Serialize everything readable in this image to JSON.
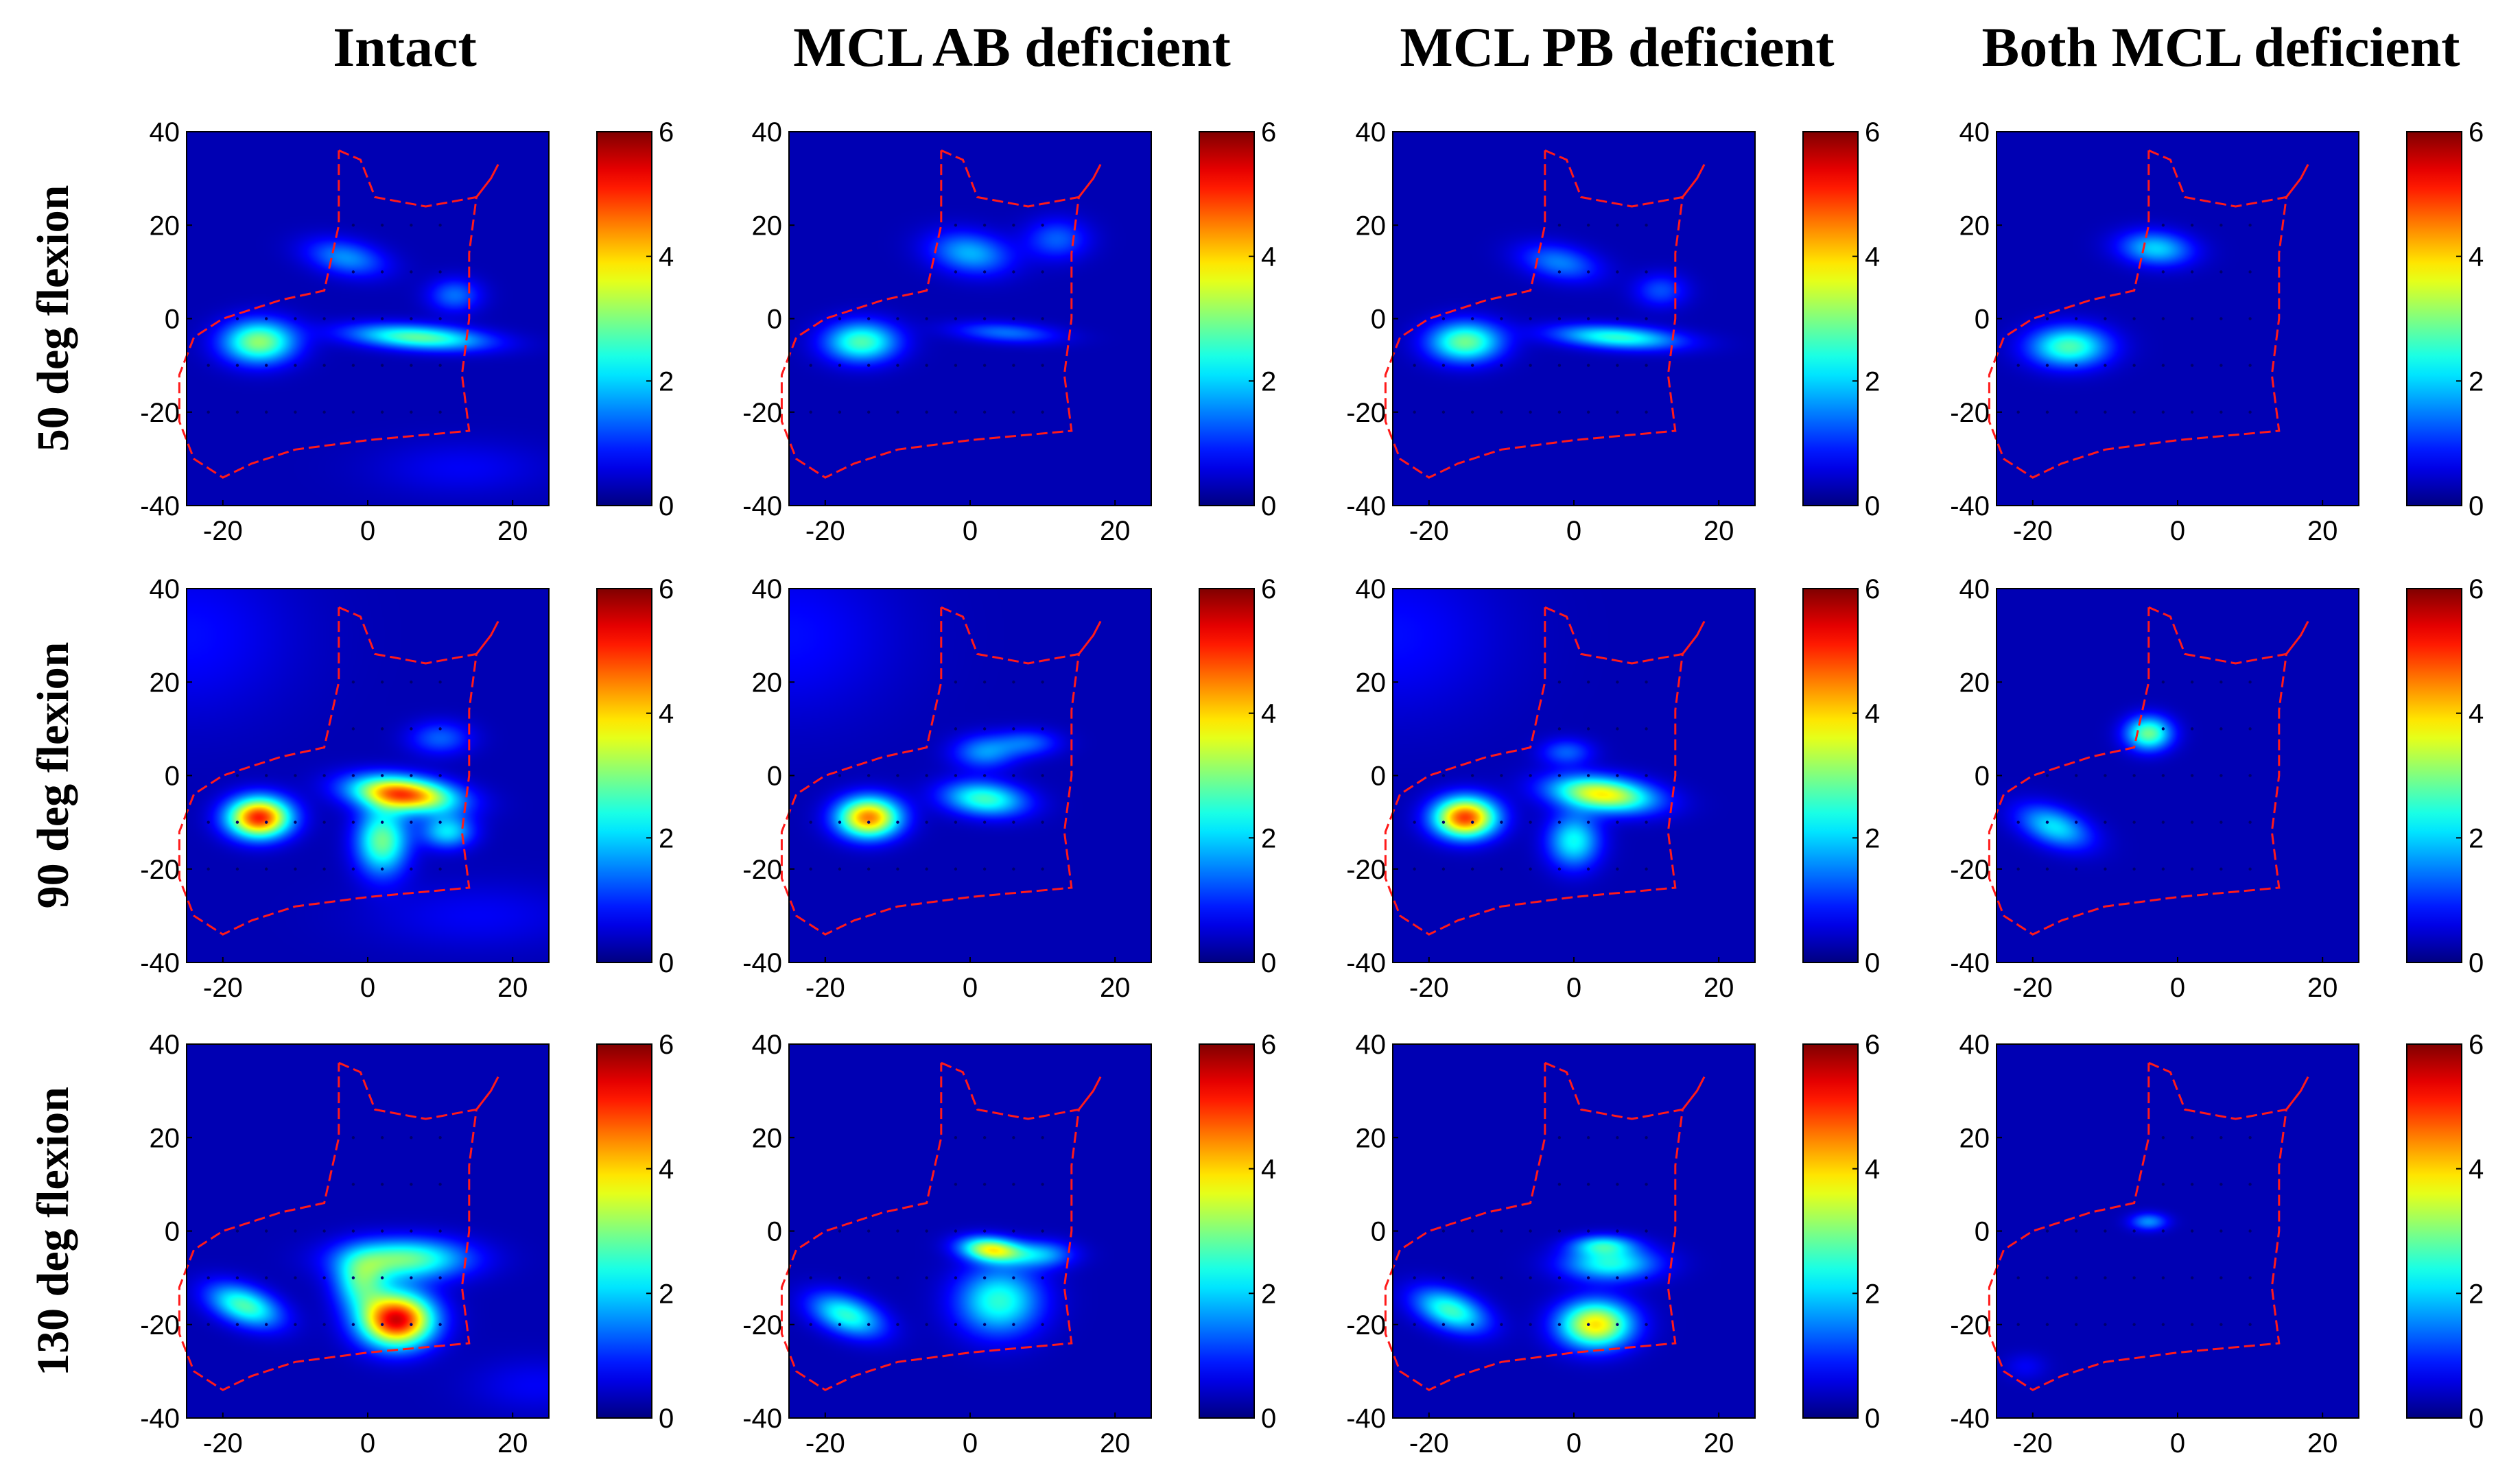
{
  "colors": {
    "background": "#000080",
    "outline": "#ff1a1a",
    "marker": "#00006e",
    "colormap": [
      "#00008f",
      "#0000ff",
      "#00ffff",
      "#ffff00",
      "#ff0000",
      "#800000"
    ]
  },
  "chart_data": {
    "type": "heatmap",
    "title": "",
    "column_titles": [
      "Intact",
      "MCL AB deficient",
      "MCL PB deficient",
      "Both MCL deficient"
    ],
    "row_titles": [
      "50 deg flexion",
      "90 deg flexion",
      "130 deg flexion"
    ],
    "x_range": [
      -25,
      25
    ],
    "y_range": [
      -40,
      40
    ],
    "x_ticks": [
      "-20",
      "0",
      "20"
    ],
    "y_ticks": [
      "40",
      "20",
      "0",
      "-20",
      "-40"
    ],
    "colorbar": {
      "range": [
        0,
        6
      ],
      "ticks": [
        "6",
        "4",
        "2",
        "0"
      ]
    },
    "outline": [
      [
        -4,
        36
      ],
      [
        -1,
        34
      ],
      [
        1,
        26
      ],
      [
        8,
        24
      ],
      [
        15,
        26
      ],
      [
        17,
        30
      ],
      [
        18,
        33
      ],
      [
        17,
        30
      ],
      [
        15,
        26
      ],
      [
        14,
        14
      ],
      [
        14,
        0
      ],
      [
        13,
        -12
      ],
      [
        14,
        -24
      ],
      [
        0,
        -26
      ],
      [
        -10,
        -28
      ],
      [
        -16,
        -31
      ],
      [
        -20,
        -34
      ],
      [
        -24,
        -30
      ],
      [
        -26,
        -22
      ],
      [
        -26,
        -12
      ],
      [
        -24,
        -4
      ],
      [
        -20,
        0
      ],
      [
        -12,
        4
      ],
      [
        -6,
        6
      ],
      [
        -4,
        20
      ],
      [
        -4,
        36
      ]
    ],
    "markers": [
      [
        -22,
        -20
      ],
      [
        -18,
        -20
      ],
      [
        -14,
        -20
      ],
      [
        -10,
        -20
      ],
      [
        -6,
        -20
      ],
      [
        -2,
        -20
      ],
      [
        2,
        -20
      ],
      [
        6,
        -20
      ],
      [
        10,
        -20
      ],
      [
        -22,
        -10
      ],
      [
        -18,
        -10
      ],
      [
        -14,
        -10
      ],
      [
        -10,
        -10
      ],
      [
        -6,
        -10
      ],
      [
        -2,
        -10
      ],
      [
        2,
        -10
      ],
      [
        6,
        -10
      ],
      [
        10,
        -10
      ],
      [
        -18,
        0
      ],
      [
        -14,
        0
      ],
      [
        -10,
        0
      ],
      [
        -6,
        0
      ],
      [
        -2,
        0
      ],
      [
        2,
        0
      ],
      [
        6,
        0
      ],
      [
        10,
        0
      ],
      [
        -2,
        10
      ],
      [
        2,
        10
      ],
      [
        6,
        10
      ],
      [
        10,
        10
      ],
      [
        -2,
        20
      ],
      [
        2,
        20
      ],
      [
        6,
        20
      ],
      [
        10,
        20
      ]
    ],
    "panels": [
      {
        "row": 0,
        "col": 0,
        "blobs": [
          {
            "x": -15,
            "y": -5,
            "sx": 3.5,
            "sy": 3.2,
            "v": 2.8,
            "r": 0
          },
          {
            "x": 7,
            "y": -4,
            "sx": 6.5,
            "sy": 1.8,
            "v": 2.5,
            "r": -0.1
          },
          {
            "x": -3,
            "y": 13,
            "sx": 4,
            "sy": 2.5,
            "v": 1.3,
            "r": -0.4
          },
          {
            "x": 12,
            "y": 5,
            "sx": 2.5,
            "sy": 2.5,
            "v": 1.1,
            "r": 0
          },
          {
            "x": 13,
            "y": -32,
            "sx": 8,
            "sy": 4,
            "v": 0.4,
            "r": 0
          }
        ]
      },
      {
        "row": 0,
        "col": 1,
        "blobs": [
          {
            "x": -15,
            "y": -5,
            "sx": 3.5,
            "sy": 3,
            "v": 2.4,
            "r": 0
          },
          {
            "x": 5,
            "y": -3,
            "sx": 5,
            "sy": 1.5,
            "v": 1.1,
            "r": -0.1
          },
          {
            "x": 0,
            "y": 14,
            "sx": 4,
            "sy": 3,
            "v": 1.5,
            "r": -0.4
          },
          {
            "x": 12,
            "y": 17,
            "sx": 3,
            "sy": 3,
            "v": 1,
            "r": 0
          }
        ]
      },
      {
        "row": 0,
        "col": 2,
        "blobs": [
          {
            "x": -15,
            "y": -5,
            "sx": 3.5,
            "sy": 3,
            "v": 2.6,
            "r": 0
          },
          {
            "x": 6,
            "y": -4,
            "sx": 6,
            "sy": 1.7,
            "v": 2.2,
            "r": -0.1
          },
          {
            "x": -2,
            "y": 12,
            "sx": 4,
            "sy": 2.5,
            "v": 1.2,
            "r": -0.4
          },
          {
            "x": 12,
            "y": 6,
            "sx": 2.5,
            "sy": 2.5,
            "v": 0.9,
            "r": 0
          }
        ]
      },
      {
        "row": 0,
        "col": 3,
        "blobs": [
          {
            "x": -15,
            "y": -6,
            "sx": 3.8,
            "sy": 3,
            "v": 2.4,
            "r": 0
          },
          {
            "x": -3,
            "y": 15,
            "sx": 3.5,
            "sy": 2.5,
            "v": 1.7,
            "r": -0.2
          }
        ]
      },
      {
        "row": 1,
        "col": 0,
        "blobs": [
          {
            "x": -15,
            "y": -9,
            "sx": 3,
            "sy": 3,
            "v": 4.8,
            "r": 0
          },
          {
            "x": 5,
            "y": -4,
            "sx": 5,
            "sy": 2.5,
            "v": 4.5,
            "r": -0.2
          },
          {
            "x": 2,
            "y": -14,
            "sx": 2.5,
            "sy": 5,
            "v": 2.6,
            "r": 0
          },
          {
            "x": 11,
            "y": -12,
            "sx": 2.5,
            "sy": 2.5,
            "v": 1.8,
            "r": 0
          },
          {
            "x": 10,
            "y": 8,
            "sx": 3,
            "sy": 2.5,
            "v": 1,
            "r": 0
          },
          {
            "x": -25,
            "y": 30,
            "sx": 10,
            "sy": 12,
            "v": 0.5,
            "r": 0
          },
          {
            "x": 15,
            "y": -30,
            "sx": 10,
            "sy": 5,
            "v": 0.4,
            "r": 0
          }
        ]
      },
      {
        "row": 1,
        "col": 1,
        "blobs": [
          {
            "x": -14,
            "y": -9,
            "sx": 3,
            "sy": 3,
            "v": 4.2,
            "r": 0
          },
          {
            "x": 2,
            "y": -5,
            "sx": 4,
            "sy": 2.5,
            "v": 2.3,
            "r": -0.2
          },
          {
            "x": 2,
            "y": 5,
            "sx": 3,
            "sy": 2.5,
            "v": 1.3,
            "r": 0
          },
          {
            "x": 8,
            "y": 7,
            "sx": 3,
            "sy": 2,
            "v": 1,
            "r": 0
          },
          {
            "x": -25,
            "y": 30,
            "sx": 10,
            "sy": 12,
            "v": 0.5,
            "r": 0
          }
        ]
      },
      {
        "row": 1,
        "col": 2,
        "blobs": [
          {
            "x": -15,
            "y": -9,
            "sx": 3,
            "sy": 3,
            "v": 4.6,
            "r": 0
          },
          {
            "x": 4,
            "y": -4,
            "sx": 5,
            "sy": 2.5,
            "v": 3.5,
            "r": -0.2
          },
          {
            "x": 0,
            "y": -14,
            "sx": 2.5,
            "sy": 4,
            "v": 2,
            "r": 0
          },
          {
            "x": -1,
            "y": 5,
            "sx": 2.5,
            "sy": 2,
            "v": 1,
            "r": 0
          },
          {
            "x": -25,
            "y": 30,
            "sx": 10,
            "sy": 12,
            "v": 0.5,
            "r": 0
          }
        ]
      },
      {
        "row": 1,
        "col": 3,
        "blobs": [
          {
            "x": -4,
            "y": 9,
            "sx": 2.2,
            "sy": 2.5,
            "v": 2.6,
            "r": 0
          },
          {
            "x": -17,
            "y": -11,
            "sx": 4,
            "sy": 2.5,
            "v": 1.8,
            "r": -0.7
          }
        ]
      },
      {
        "row": 2,
        "col": 0,
        "blobs": [
          {
            "x": 4,
            "y": -19,
            "sx": 3.5,
            "sy": 4,
            "v": 5.2,
            "r": 0
          },
          {
            "x": 5,
            "y": -6,
            "sx": 6,
            "sy": 3,
            "v": 2.6,
            "r": 0
          },
          {
            "x": -1,
            "y": -11,
            "sx": 2.5,
            "sy": 4,
            "v": 2,
            "r": 0
          },
          {
            "x": -17,
            "y": -16,
            "sx": 4,
            "sy": 2.5,
            "v": 2.4,
            "r": -0.7
          },
          {
            "x": 23,
            "y": -33,
            "sx": 6,
            "sy": 4,
            "v": 0.4,
            "r": 0
          }
        ]
      },
      {
        "row": 2,
        "col": 1,
        "blobs": [
          {
            "x": 3,
            "y": -4,
            "sx": 3,
            "sy": 1.8,
            "v": 3.3,
            "r": -0.2
          },
          {
            "x": 4,
            "y": -15,
            "sx": 4,
            "sy": 5,
            "v": 2.2,
            "r": 0
          },
          {
            "x": 10,
            "y": -5,
            "sx": 3,
            "sy": 2,
            "v": 1.4,
            "r": 0
          },
          {
            "x": -17,
            "y": -18,
            "sx": 4,
            "sy": 2.5,
            "v": 2.2,
            "r": -0.7
          }
        ]
      },
      {
        "row": 2,
        "col": 2,
        "blobs": [
          {
            "x": 3,
            "y": -20,
            "sx": 3.5,
            "sy": 3.5,
            "v": 3.6,
            "r": 0
          },
          {
            "x": 5,
            "y": -7,
            "sx": 4.5,
            "sy": 2.5,
            "v": 2.1,
            "r": 0
          },
          {
            "x": 4,
            "y": -3,
            "sx": 3,
            "sy": 1.5,
            "v": 1.7,
            "r": 0
          },
          {
            "x": -17,
            "y": -17,
            "sx": 4,
            "sy": 2.5,
            "v": 2.3,
            "r": -0.7
          }
        ]
      },
      {
        "row": 2,
        "col": 3,
        "blobs": [
          {
            "x": -4,
            "y": 2,
            "sx": 1.8,
            "sy": 1.3,
            "v": 1.3,
            "r": 0
          },
          {
            "x": -21,
            "y": -29,
            "sx": 2,
            "sy": 2,
            "v": 0.4,
            "r": 0
          }
        ]
      }
    ]
  }
}
